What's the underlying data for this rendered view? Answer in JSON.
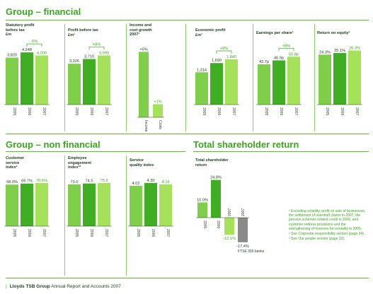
{
  "header": {
    "financial_title": "Group – financial",
    "non_financial_title": "Group – non financial",
    "tsr_title": "Total shareholder return"
  },
  "colors": {
    "accent": "#3aa51e",
    "bar_light": "#7fcf4a",
    "bar_mid": "#3fae22",
    "bar_dark": "#178a13",
    "bar_highlight": "#a6e15a",
    "bar_grey": "#8a8a8a",
    "rule": "#5cbf2a"
  },
  "chart_data": [
    {
      "id": "statutory_profit",
      "type": "bar",
      "title": "Statutory profit\nbefore tax\n£m",
      "categories": [
        "2005",
        "2006",
        "2007"
      ],
      "values": [
        3820,
        4248,
        4000
      ],
      "value_labels": [
        "3,820",
        "4,248",
        "4,000"
      ],
      "change_label": "-6%",
      "ylim": [
        0,
        4600
      ]
    },
    {
      "id": "profit_before_tax",
      "type": "bar",
      "title": "Profit before tax\n£m¹",
      "categories": [
        "2005",
        "2006",
        "2007"
      ],
      "values": [
        3326,
        3710,
        3999
      ],
      "value_labels": [
        "3,326",
        "3,710",
        "3,999"
      ],
      "change_label": "+8%",
      "ylim": [
        0,
        4600
      ]
    },
    {
      "id": "income_cost_growth",
      "type": "bar",
      "title": "Income and\ncost growth\n2007¹",
      "categories": [
        "Income",
        "Costs"
      ],
      "values": [
        5,
        1
      ],
      "value_labels": [
        "+5%",
        "+1%"
      ],
      "ylim": [
        0,
        5.5
      ]
    },
    {
      "id": "economic_profit",
      "type": "bar",
      "title": "Economic profit\n£m¹",
      "categories": [
        "2005",
        "2006",
        "2007"
      ],
      "values": [
        1314,
        1690,
        1840
      ],
      "value_labels": [
        "1,314",
        "1,690",
        "1,840"
      ],
      "change_label": "+9%",
      "ylim": [
        0,
        2300
      ]
    },
    {
      "id": "earnings_per_share",
      "type": "bar",
      "title": "Earnings per share¹",
      "categories": [
        "2005",
        "2006",
        "2007"
      ],
      "values": [
        42.7,
        46.9,
        50.8
      ],
      "value_labels": [
        "42.7p",
        "46.9p",
        "50.8p"
      ],
      "change_label": "+8%",
      "ylim": [
        0,
        60
      ]
    },
    {
      "id": "return_on_equity",
      "type": "bar",
      "title": "Return on equity¹",
      "categories": [
        "2005",
        "2006",
        "2007"
      ],
      "values": [
        24.3,
        25.1,
        26.3
      ],
      "value_labels": [
        "24.3%",
        "25.1%",
        "26.3%"
      ],
      "ylim": [
        0,
        27.5
      ]
    },
    {
      "id": "customer_service_index",
      "type": "bar",
      "title": "Customer\nservice\nindex²",
      "categories": [
        "2005",
        "2006",
        "2007"
      ],
      "values": [
        68.0,
        69.7,
        70.6
      ],
      "value_labels": [
        "68.0%",
        "69.7%",
        "70.6%"
      ],
      "ylim": [
        0,
        74
      ]
    },
    {
      "id": "employee_engagement_index",
      "type": "bar",
      "title": "Employee\nengagement\nindex²³",
      "categories": [
        "2005",
        "2006",
        "2007"
      ],
      "values": [
        73.0,
        74.5,
        75.3
      ],
      "value_labels": [
        "73.0",
        "74.5",
        "75.3"
      ],
      "ylim": [
        0,
        79
      ]
    },
    {
      "id": "service_quality_index",
      "type": "bar",
      "title": "Service\nquality index",
      "categories": [
        "2005",
        "2006",
        "2007"
      ],
      "values": [
        4.02,
        4.3,
        4.16
      ],
      "value_labels": [
        "4.02",
        "4.30",
        "4.16"
      ],
      "ylim": [
        0,
        4.5
      ]
    },
    {
      "id": "total_shareholder_return",
      "type": "bar",
      "title": "Total shareholder\nreturn",
      "categories": [
        "2005",
        "2006",
        "2007",
        "2007"
      ],
      "values": [
        10.0,
        24.8,
        -12.1,
        -17.4
      ],
      "value_labels": [
        "10.0%",
        "24.8%",
        "-12.1%",
        "-17.4%"
      ],
      "ylim": [
        -20,
        26
      ]
    }
  ],
  "tsr_note": "FTSE 350 banks",
  "footnotes": [
    "¹ Excluding volatility, profit on sale of businesses, the settlement of overdraft claims in 2007, the pension schemes related credit in 2006, and customer redress provisions and the strengthening of reserves for mortality in 2005.",
    "² See Corporate responsibility section (page 34).",
    "³ See Our people section (page 32)."
  ],
  "footer": {
    "brand": "Lloyds TSB Group",
    "text": "Annual Report and Accounts 2007"
  }
}
